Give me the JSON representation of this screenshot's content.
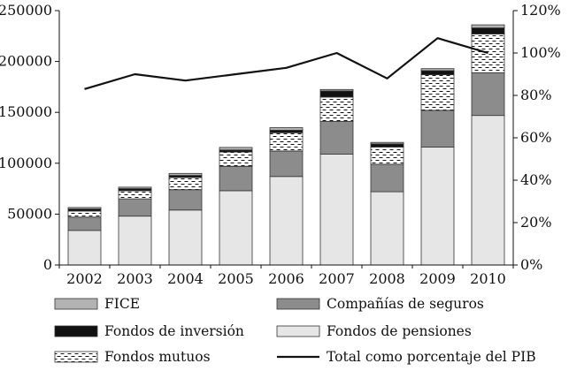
{
  "chart_data": {
    "type": "bar",
    "stacked": true,
    "categories": [
      "2002",
      "2003",
      "2004",
      "2005",
      "2006",
      "2007",
      "2008",
      "2009",
      "2010"
    ],
    "series": [
      {
        "name": "Fondos de pensiones",
        "axis": "left",
        "color": "#e6e6e6",
        "pattern": "none",
        "values": [
          34000,
          48000,
          54000,
          73000,
          87000,
          109000,
          72000,
          116000,
          147000
        ]
      },
      {
        "name": "Compañías de seguros",
        "axis": "left",
        "color": "#8c8c8c",
        "pattern": "none",
        "values": [
          13000,
          17000,
          20000,
          24000,
          25000,
          32000,
          27000,
          36000,
          42000
        ]
      },
      {
        "name": "Fondos mutuos",
        "axis": "left",
        "color": "#ffffff",
        "pattern": "dashes",
        "values": [
          6000,
          8000,
          12000,
          14000,
          18000,
          24000,
          17000,
          35000,
          38000
        ]
      },
      {
        "name": "Fondos de inversión",
        "axis": "left",
        "color": "#111111",
        "pattern": "none",
        "values": [
          2000,
          2000,
          2000,
          2000,
          2500,
          6000,
          3000,
          4000,
          6000
        ]
      },
      {
        "name": "FICE",
        "axis": "left",
        "color": "#b3b3b3",
        "pattern": "none",
        "values": [
          1500,
          1500,
          2000,
          2500,
          2500,
          1500,
          1500,
          2000,
          3000
        ]
      },
      {
        "name": "Total como porcentaje del PIB",
        "axis": "right",
        "type": "line",
        "color": "#111111",
        "values": [
          83,
          90,
          87,
          90,
          93,
          100,
          88,
          107,
          100
        ]
      }
    ],
    "left_axis": {
      "ylim": [
        0,
        250000
      ],
      "ticks": [
        "0",
        "50000",
        "100000",
        "150000",
        "200000",
        "250000"
      ]
    },
    "right_axis": {
      "ylim": [
        0,
        120
      ],
      "ticks": [
        "0%",
        "20%",
        "40%",
        "60%",
        "80%",
        "100%",
        "120%"
      ]
    },
    "grid": false,
    "legend": {
      "placement": "bottom",
      "entries": [
        {
          "label": "FICE",
          "series": "FICE",
          "kind": "swatch"
        },
        {
          "label": "Compañías de seguros",
          "series": "Compañías de seguros",
          "kind": "swatch"
        },
        {
          "label": "Fondos de inversión",
          "series": "Fondos de inversión",
          "kind": "swatch"
        },
        {
          "label": "Fondos de pensiones",
          "series": "Fondos de pensiones",
          "kind": "swatch"
        },
        {
          "label": "Fondos mutuos",
          "series": "Fondos mutuos",
          "kind": "swatch"
        },
        {
          "label": "Total como porcentaje del PIB",
          "series": "Total como porcentaje del PIB",
          "kind": "line"
        }
      ]
    }
  }
}
